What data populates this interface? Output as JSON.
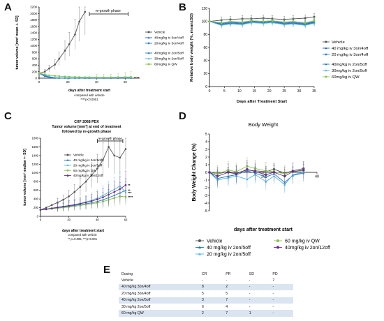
{
  "panels": {
    "A": "A",
    "B": "B",
    "C": "C",
    "D": "D",
    "E": "E"
  },
  "colors": {
    "vehicle": "#555555",
    "blue1": "#1f5fa8",
    "blue2": "#2f86c9",
    "blue3": "#1b75bc",
    "cyan": "#4fb3e8",
    "green": "#8bc34a",
    "purple": "#6a2c91"
  },
  "chart_data": [
    {
      "panel": "A",
      "type": "line",
      "xlabel": "days after treatment start",
      "ylabel": "tumor volume [mm³ mean +- SD]",
      "xlim": [
        0,
        70
      ],
      "ylim": [
        0,
        2200
      ],
      "xticks": [
        0,
        20,
        40,
        60
      ],
      "yticks": [
        0,
        200,
        400,
        600,
        800,
        1000,
        1200,
        1400,
        1600,
        1800,
        2000,
        2200
      ],
      "annotation": "re-growth phase",
      "footnote": [
        "compared with vehicle",
        "****p<0.0001"
      ],
      "significance": "****",
      "series": [
        {
          "name": "Vehicle",
          "x": [
            0,
            4,
            7,
            11,
            14,
            18,
            21,
            25,
            28,
            32
          ],
          "y": [
            150,
            200,
            300,
            420,
            600,
            850,
            1050,
            1350,
            1750,
            2050
          ]
        },
        {
          "name": "40mg/kg iv 3on/4off",
          "x": [
            0,
            4,
            7,
            11,
            14,
            18,
            21,
            25,
            28,
            32,
            35,
            40,
            45,
            50,
            55,
            60,
            64
          ],
          "y": [
            150,
            60,
            20,
            5,
            3,
            3,
            3,
            3,
            3,
            3,
            3,
            3,
            3,
            3,
            3,
            3,
            3
          ]
        },
        {
          "name": "20mg/kg iv 3on/4off",
          "x": [
            0,
            4,
            7,
            11,
            14,
            18,
            21,
            25,
            28,
            32,
            35,
            40,
            45,
            50,
            55,
            60,
            64
          ],
          "y": [
            150,
            80,
            30,
            10,
            5,
            5,
            5,
            5,
            5,
            8,
            10,
            10,
            10,
            12,
            12,
            15,
            15
          ]
        },
        {
          "name": "40mg/kg iv 2on/5off",
          "x": [
            0,
            4,
            7,
            11,
            14,
            18,
            21,
            25,
            28,
            32,
            35,
            40,
            45,
            50,
            55,
            60,
            64
          ],
          "y": [
            150,
            90,
            40,
            15,
            8,
            6,
            6,
            6,
            6,
            8,
            8,
            8,
            10,
            10,
            10,
            12,
            12
          ]
        },
        {
          "name": "30mg/kg iv 2on/5off",
          "x": [
            0,
            4,
            7,
            11,
            14,
            18,
            21,
            25,
            28,
            32,
            35,
            40,
            45,
            50,
            55,
            60,
            64
          ],
          "y": [
            150,
            100,
            50,
            20,
            10,
            8,
            8,
            8,
            8,
            10,
            10,
            12,
            12,
            15,
            15,
            18,
            18
          ]
        },
        {
          "name": "60mg/kg iv QW",
          "x": [
            0,
            4,
            7,
            11,
            14,
            18,
            21,
            25,
            28,
            32,
            35,
            40,
            45,
            50,
            55,
            60,
            64
          ],
          "y": [
            150,
            120,
            90,
            70,
            60,
            50,
            45,
            40,
            35,
            30,
            30,
            25,
            25,
            25,
            30,
            35,
            40
          ]
        }
      ]
    },
    {
      "panel": "B",
      "type": "line",
      "xlabel": "Days after Treatment Start",
      "ylabel": "Relative body weight (%, mean±SD)",
      "xlim": [
        0,
        35
      ],
      "ylim": [
        0,
        120
      ],
      "xticks": [
        0,
        5,
        10,
        15,
        20,
        25,
        30,
        35
      ],
      "yticks": [
        0,
        20,
        40,
        60,
        80,
        100,
        120
      ],
      "series": [
        {
          "name": "Vehicle",
          "x": [
            0,
            4,
            7,
            11,
            14,
            18,
            21,
            25,
            28,
            32,
            35
          ],
          "y": [
            100,
            102,
            103,
            104,
            104,
            105,
            104,
            103,
            104,
            105,
            107
          ]
        },
        {
          "name": "40 mg/kg iv 3on/4off",
          "x": [
            0,
            4,
            7,
            11,
            14,
            18,
            21,
            25,
            28,
            32,
            35
          ],
          "y": [
            100,
            96,
            98,
            97,
            100,
            99,
            100,
            97,
            98,
            96,
            99
          ]
        },
        {
          "name": "20 mg/kg iv 3on/4off",
          "x": [
            0,
            4,
            7,
            11,
            14,
            18,
            21,
            25,
            28,
            32,
            35
          ],
          "y": [
            100,
            97,
            99,
            98,
            101,
            100,
            101,
            98,
            99,
            97,
            100
          ]
        },
        {
          "name": "40mg/kg iv 2on/5off",
          "x": [
            0,
            4,
            7,
            11,
            14,
            18,
            21,
            25,
            28,
            32,
            35
          ],
          "y": [
            100,
            95,
            97,
            96,
            99,
            98,
            99,
            96,
            97,
            95,
            98
          ]
        },
        {
          "name": "30mg/kg iv 2on/5off",
          "x": [
            0,
            4,
            7,
            11,
            14,
            18,
            21,
            25,
            28,
            32,
            35
          ],
          "y": [
            100,
            94,
            96,
            95,
            98,
            97,
            98,
            95,
            96,
            94,
            97
          ]
        },
        {
          "name": "60mg/kg iv QW",
          "x": [
            0,
            4,
            7,
            11,
            14,
            18,
            21,
            25,
            28,
            32,
            35
          ],
          "y": [
            100,
            98,
            100,
            99,
            101,
            100,
            101,
            99,
            100,
            98,
            101
          ]
        }
      ]
    },
    {
      "panel": "C",
      "type": "line",
      "title": "CXF 2068 PDX",
      "subtitle": "Tumor volume [mm³] at end of treatment",
      "subtitle2": "followed by re-growth phase",
      "xlabel": "days after treatment start",
      "ylabel": "tumor volume [mm³ median +- SD]",
      "xlim": [
        0,
        60
      ],
      "ylim": [
        0,
        1800
      ],
      "xticks": [
        0,
        20,
        40,
        60
      ],
      "yticks": [
        0,
        200,
        400,
        600,
        800,
        1000,
        1200,
        1400,
        1600,
        1800
      ],
      "annotation": "re-growth phase",
      "footnote": [
        "compared with vehicle",
        "** p=0.005, ***p<0.001"
      ],
      "markers": [
        "**",
        "**",
        "***",
        "****"
      ],
      "series": [
        {
          "name": "Vehicle",
          "x": [
            0,
            4,
            8,
            12,
            16,
            20,
            24,
            28,
            32,
            36,
            40,
            44,
            48,
            52,
            56,
            60
          ],
          "y": [
            150,
            200,
            260,
            320,
            380,
            460,
            560,
            680,
            800,
            950,
            1100,
            1300,
            1600,
            1400,
            1350,
            1550
          ]
        },
        {
          "name": "40 mg/kg iv 2on/5off",
          "x": [
            0,
            4,
            8,
            12,
            16,
            20,
            24,
            28,
            32,
            36,
            40,
            44,
            48,
            52,
            56,
            60
          ],
          "y": [
            150,
            160,
            180,
            200,
            210,
            230,
            250,
            270,
            290,
            310,
            340,
            380,
            430,
            480,
            540,
            600
          ]
        },
        {
          "name": "20 mg/kg iv 2on/5off",
          "x": [
            0,
            4,
            8,
            12,
            16,
            20,
            24,
            28,
            32,
            36,
            40,
            44,
            48,
            52,
            56,
            60
          ],
          "y": [
            150,
            170,
            190,
            210,
            230,
            250,
            270,
            300,
            330,
            370,
            420,
            480,
            550,
            620,
            700,
            550
          ]
        },
        {
          "name": "60 mg/kg iv QW",
          "x": [
            0,
            4,
            8,
            12,
            16,
            20,
            24,
            28,
            32,
            36,
            40,
            44,
            48,
            52,
            56,
            60
          ],
          "y": [
            150,
            160,
            170,
            185,
            200,
            215,
            230,
            250,
            270,
            290,
            310,
            340,
            380,
            420,
            460,
            450
          ]
        },
        {
          "name": "40mg/kg iv 2on/12off",
          "x": [
            0,
            4,
            8,
            12,
            16,
            20,
            24,
            28,
            32,
            36,
            40,
            44,
            48,
            52,
            56,
            60
          ],
          "y": [
            150,
            165,
            185,
            205,
            225,
            245,
            265,
            290,
            320,
            350,
            390,
            440,
            500,
            560,
            630,
            720
          ]
        }
      ]
    },
    {
      "panel": "D",
      "type": "line",
      "title": "Body Weight",
      "xlabel": "days after treatment start",
      "ylabel": "Body Weight Change (%)",
      "xlim": [
        0,
        40
      ],
      "ylim": [
        -5,
        5
      ],
      "xticks": [
        20,
        40
      ],
      "yticks": [
        -5,
        -4,
        -3,
        -2,
        -1,
        0,
        1,
        2,
        3,
        4,
        5
      ],
      "series": [
        {
          "name": "Vehicle",
          "x": [
            0,
            3,
            7,
            10,
            14,
            17,
            21,
            24,
            28,
            31,
            35
          ],
          "y": [
            0,
            -0.2,
            0.1,
            -0.1,
            0.3,
            0.2,
            0.1,
            0.4,
            -0.1,
            0.2,
            0.5
          ]
        },
        {
          "name": "40 mg/kg iv 2on/5off",
          "x": [
            0,
            3,
            7,
            10,
            14,
            17,
            21,
            24,
            28,
            31,
            35
          ],
          "y": [
            0,
            -0.8,
            -0.5,
            -0.3,
            0.2,
            -0.1,
            -0.6,
            -0.2,
            -1.3,
            -0.4,
            -0.1
          ]
        },
        {
          "name": "20 mg/kg iv 2on/5off",
          "x": [
            0,
            3,
            7,
            10,
            14,
            17,
            21,
            24,
            28,
            31,
            35
          ],
          "y": [
            0,
            -1.0,
            -0.7,
            -0.5,
            -0.9,
            -0.3,
            -1.2,
            -0.5,
            -1.6,
            -0.3,
            0.0
          ]
        },
        {
          "name": "60 mg/kg iv QW",
          "x": [
            0,
            3,
            7,
            10,
            14,
            17,
            21,
            24,
            28,
            31,
            35
          ],
          "y": [
            0,
            -0.2,
            0.3,
            0.1,
            0.8,
            0.5,
            0.2,
            0.1,
            -0.2,
            0.1,
            0.2
          ]
        },
        {
          "name": "40mg/kg iv 2on/12off",
          "x": [
            0,
            3,
            7,
            10,
            14,
            17,
            21,
            24,
            28,
            31,
            35
          ],
          "y": [
            0,
            -0.5,
            0.0,
            -0.2,
            0.4,
            0.1,
            -0.3,
            0.0,
            -0.5,
            0.1,
            0.3
          ]
        }
      ]
    },
    {
      "panel": "E",
      "type": "table",
      "columns": [
        "Dosing",
        "CR",
        "PR",
        "SD",
        "PD"
      ],
      "rows": [
        [
          "Vehicle",
          "-",
          "-",
          "-",
          "7"
        ],
        [
          "40 mg/kg 3on/4off",
          "8",
          "2",
          "-",
          "-"
        ],
        [
          "20 mg/kg 3on/4off",
          "5",
          "5",
          "-",
          "-"
        ],
        [
          "40 mg/kg 2on/5off",
          "3",
          "7",
          "-",
          "-"
        ],
        [
          "30 mg/kg 2on/5off",
          "6",
          "4",
          "-",
          "-"
        ],
        [
          "60 mg/kg QW",
          "2",
          "7",
          "1",
          "-"
        ]
      ]
    }
  ]
}
